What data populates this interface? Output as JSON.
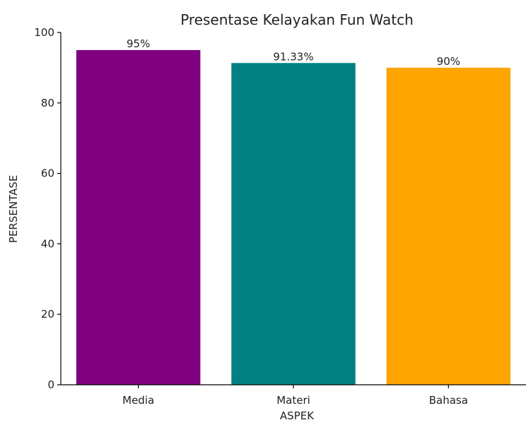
{
  "chart_data": {
    "type": "bar",
    "title": "Presentase Kelayakan Fun Watch",
    "xlabel": "ASPEK",
    "ylabel": "PERSENTASE",
    "categories": [
      "Media",
      "Materi",
      "Bahasa"
    ],
    "values": [
      95,
      91.33,
      90
    ],
    "data_labels": [
      "95%",
      "91.33%",
      "90%"
    ],
    "colors": [
      "#800080",
      "#008080",
      "#ffa500"
    ],
    "ylim": [
      0,
      100
    ],
    "yticks": [
      0,
      20,
      40,
      60,
      80,
      100
    ],
    "grid": false,
    "legend": "none"
  }
}
